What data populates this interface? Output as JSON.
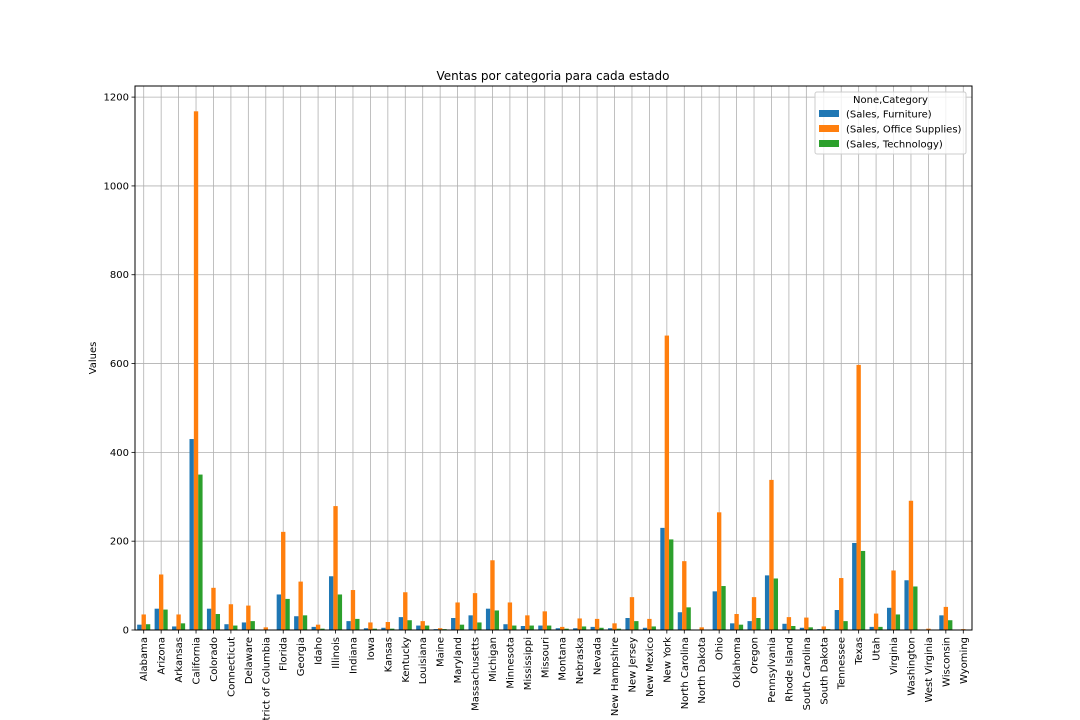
{
  "chart_data": {
    "type": "bar",
    "title": "Ventas por categoria para cada estado",
    "xlabel": "",
    "ylabel": "Values",
    "ylim": [
      0,
      1225
    ],
    "yticks": [
      0,
      200,
      400,
      600,
      800,
      1000,
      1200
    ],
    "grid": true,
    "legend_position": "top-right",
    "legend_title": "None,Category",
    "categories": [
      "Alabama",
      "Arizona",
      "Arkansas",
      "California",
      "Colorado",
      "Connecticut",
      "Delaware",
      "District of Columbia",
      "Florida",
      "Georgia",
      "Idaho",
      "Illinois",
      "Indiana",
      "Iowa",
      "Kansas",
      "Kentucky",
      "Louisiana",
      "Maine",
      "Maryland",
      "Massachusetts",
      "Michigan",
      "Minnesota",
      "Mississippi",
      "Missouri",
      "Montana",
      "Nebraska",
      "Nevada",
      "New Hampshire",
      "New Jersey",
      "New Mexico",
      "New York",
      "North Carolina",
      "North Dakota",
      "Ohio",
      "Oklahoma",
      "Oregon",
      "Pennsylvania",
      "Rhode Island",
      "South Carolina",
      "South Dakota",
      "Tennessee",
      "Texas",
      "Utah",
      "Virginia",
      "Washington",
      "West Virginia",
      "Wisconsin",
      "Wyoming"
    ],
    "series": [
      {
        "name": "(Sales, Furniture)",
        "color": "#1f77b4",
        "values": [
          12,
          48,
          8,
          430,
          48,
          13,
          17,
          1,
          80,
          31,
          7,
          121,
          20,
          4,
          5,
          29,
          10,
          2,
          27,
          33,
          48,
          13,
          9,
          10,
          4,
          4,
          7,
          4,
          27,
          5,
          230,
          40,
          1,
          87,
          15,
          20,
          123,
          14,
          5,
          2,
          45,
          196,
          7,
          50,
          112,
          1,
          33,
          1
        ]
      },
      {
        "name": "(Sales, Office Supplies)",
        "color": "#ff7f0e",
        "values": [
          35,
          125,
          35,
          1168,
          95,
          58,
          55,
          6,
          221,
          109,
          12,
          279,
          90,
          17,
          18,
          85,
          20,
          4,
          62,
          83,
          157,
          62,
          33,
          42,
          7,
          26,
          25,
          15,
          74,
          25,
          663,
          155,
          6,
          265,
          36,
          74,
          338,
          29,
          28,
          8,
          117,
          597,
          37,
          134,
          291,
          3,
          52,
          2
        ]
      },
      {
        "name": "(Sales, Technology)",
        "color": "#2ca02c",
        "values": [
          13,
          46,
          15,
          350,
          36,
          10,
          20,
          1,
          70,
          33,
          3,
          80,
          25,
          3,
          3,
          22,
          10,
          2,
          12,
          17,
          44,
          10,
          10,
          10,
          3,
          8,
          5,
          3,
          20,
          8,
          204,
          51,
          1,
          99,
          12,
          27,
          116,
          9,
          6,
          2,
          20,
          178,
          7,
          35,
          98,
          1,
          22,
          1
        ]
      }
    ]
  }
}
